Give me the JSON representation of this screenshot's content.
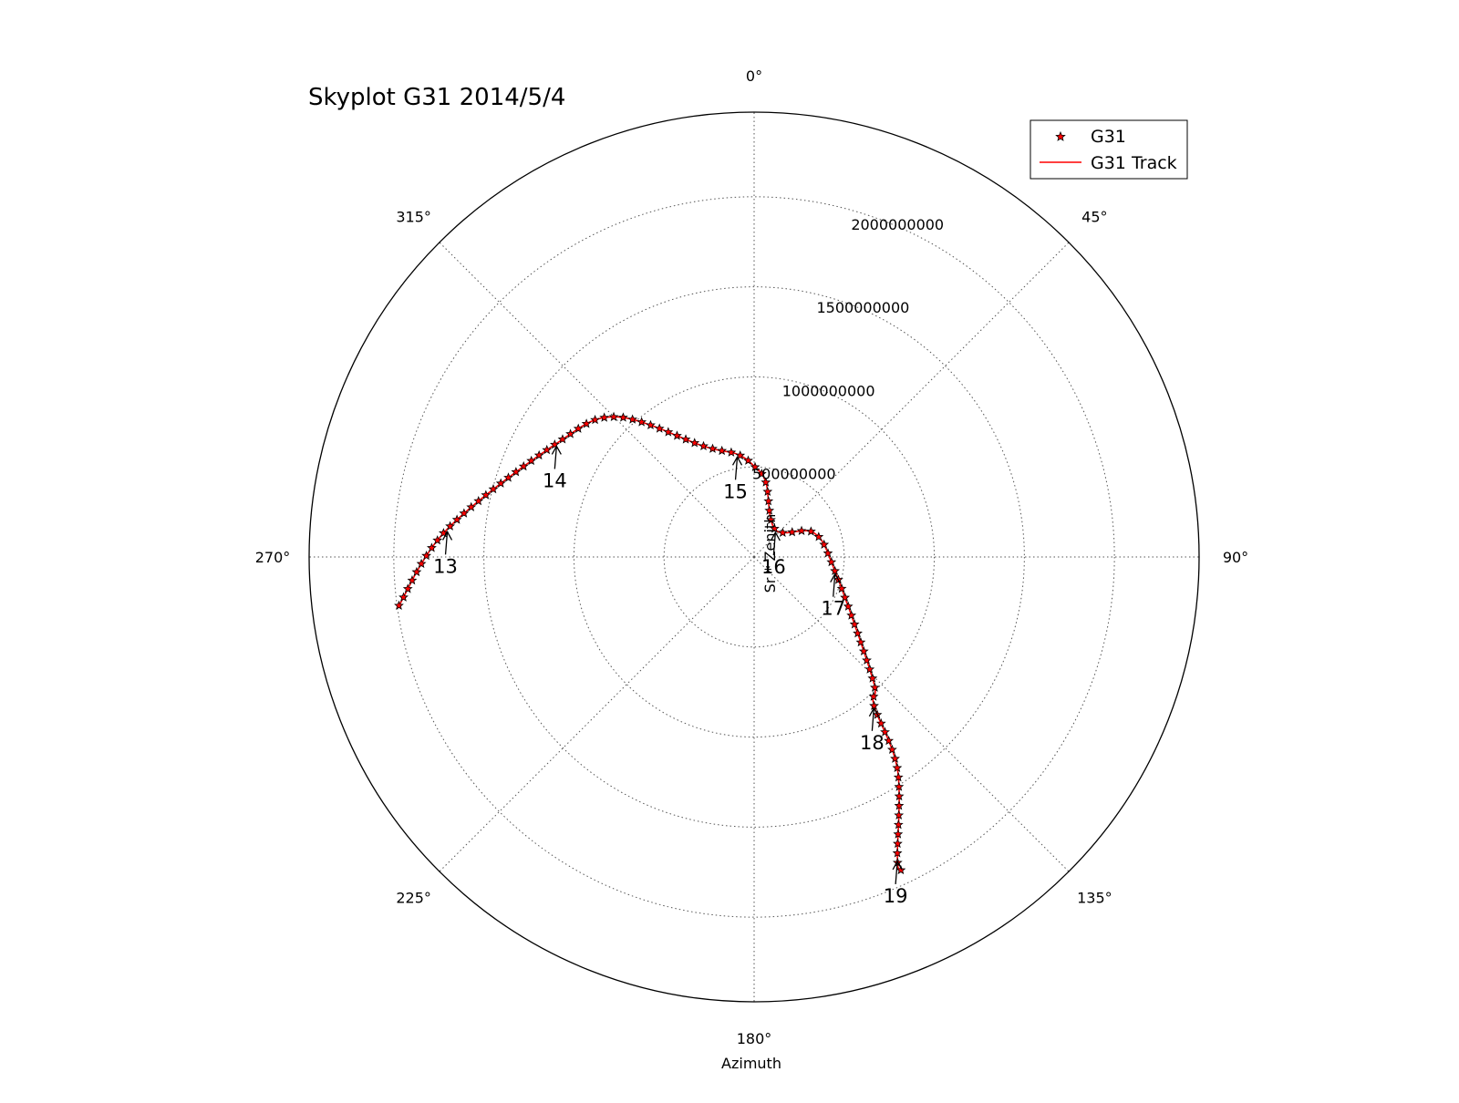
{
  "chart_data": {
    "type": "polar-scatter",
    "title": "Skyplot G31 2014/5/4",
    "xlabel": "Azimuth",
    "ylabel": "Sr * Zenith",
    "theta_direction": "clockwise",
    "theta_zero": "north",
    "angle_ticks": [
      {
        "deg": 0,
        "label": "0°"
      },
      {
        "deg": 45,
        "label": "45°"
      },
      {
        "deg": 90,
        "label": "90°"
      },
      {
        "deg": 135,
        "label": "135°"
      },
      {
        "deg": 180,
        "label": "180°"
      },
      {
        "deg": 225,
        "label": "225°"
      },
      {
        "deg": 270,
        "label": "270°"
      },
      {
        "deg": 315,
        "label": "315°"
      }
    ],
    "radial_ticks": [
      {
        "value": 500000000,
        "label": "500000000"
      },
      {
        "value": 1000000000,
        "label": "1000000000"
      },
      {
        "value": 1500000000,
        "label": "1500000000"
      },
      {
        "value": 2000000000,
        "label": "2000000000"
      }
    ],
    "rlim": [
      0,
      2470000000
    ],
    "grid": true,
    "legend": {
      "position": "top-right",
      "entries": [
        {
          "label": "G31",
          "marker": "star",
          "color": "#ff0000"
        },
        {
          "label": "G31 Track",
          "marker": "line",
          "color": "#ff0000"
        }
      ]
    },
    "track_control": [
      {
        "az": 262.2,
        "r": 1990000000
      },
      {
        "az": 275.2,
        "r": 1710000000
      },
      {
        "az": 299.9,
        "r": 1265000000
      },
      {
        "az": 315.5,
        "r": 1090000000
      },
      {
        "az": 335.6,
        "r": 675000000
      },
      {
        "az": 350.7,
        "r": 578000000
      },
      {
        "az": 0.0,
        "r": 504000000
      },
      {
        "az": 9.0,
        "r": 418000000
      },
      {
        "az": 38.0,
        "r": 192000000
      },
      {
        "az": 68.1,
        "r": 358000000
      },
      {
        "az": 100.0,
        "r": 456000000
      },
      {
        "az": 136.0,
        "r": 950000000
      },
      {
        "az": 141.1,
        "r": 1059000000
      },
      {
        "az": 146.1,
        "r": 1428000000
      },
      {
        "az": 154.6,
        "r": 1854000000
      },
      {
        "az": 154.9,
        "r": 1920000000
      }
    ],
    "hour_annotations": [
      {
        "label": "13",
        "az": 275.2,
        "r": 1710000000
      },
      {
        "label": "14",
        "az": 299.9,
        "r": 1265000000
      },
      {
        "label": "15",
        "az": 350.7,
        "r": 578000000
      },
      {
        "label": "16",
        "az": 38.0,
        "r": 192000000
      },
      {
        "label": "17",
        "az": 100.0,
        "r": 456000000
      },
      {
        "label": "18",
        "az": 141.1,
        "r": 1059000000
      },
      {
        "label": "19",
        "az": 154.6,
        "r": 1854000000
      }
    ],
    "marker_count": 97
  },
  "colors": {
    "track": "#ff0000",
    "marker_fill": "#ff0000",
    "marker_edge": "#000000",
    "grid": "#555555",
    "frame": "#000000"
  }
}
